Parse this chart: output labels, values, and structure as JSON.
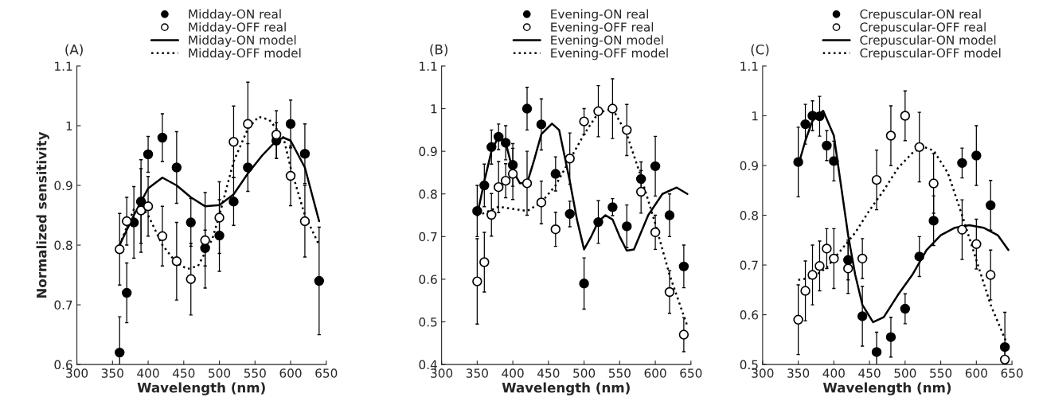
{
  "chart_data": [
    {
      "type": "scatter",
      "title": "(A)",
      "xlabel": "Wavelength (nm)",
      "ylabel": "Normalized sensitivity",
      "xlim": [
        300,
        650
      ],
      "xticks": [
        300,
        350,
        400,
        450,
        500,
        550,
        600,
        650
      ],
      "ylim": [
        0.6,
        1.1
      ],
      "yticks": [
        0.6,
        0.7,
        0.8,
        0.9,
        1,
        1.1
      ],
      "grid": false,
      "legend": "top",
      "series": [
        {
          "name": "Midday-ON real",
          "marker": "circle",
          "color": "#000000",
          "x": [
            360,
            370,
            380,
            390,
            400,
            420,
            440,
            460,
            480,
            500,
            520,
            540,
            580,
            600,
            620,
            640
          ],
          "values": [
            0.62,
            0.72,
            0.838,
            0.873,
            0.952,
            0.98,
            0.93,
            0.838,
            0.795,
            0.816,
            0.873,
            0.93,
            0.975,
            1.003,
            0.953,
            0.74
          ],
          "errors": [
            0.06,
            0.05,
            0.06,
            0.07,
            0.03,
            0.04,
            0.06,
            0.04,
            0.03,
            0.06,
            0.04,
            0.04,
            0.03,
            0.04,
            0.05,
            0.09
          ]
        },
        {
          "name": "Midday-OFF real",
          "marker": "circle",
          "color": "#ffffff",
          "x": [
            360,
            370,
            390,
            400,
            420,
            440,
            460,
            480,
            500,
            520,
            540,
            580,
            600,
            620
          ],
          "values": [
            0.793,
            0.84,
            0.858,
            0.865,
            0.815,
            0.773,
            0.743,
            0.808,
            0.846,
            0.973,
            1.003,
            0.985,
            0.916,
            0.84
          ],
          "errors": [
            0.06,
            0.04,
            0.07,
            0.05,
            0.05,
            0.065,
            0.06,
            0.08,
            0.06,
            0.06,
            0.07,
            0.04,
            0.05,
            0.06
          ]
        },
        {
          "name": "Midday-ON model",
          "type": "line",
          "line_style": "solid",
          "color": "#000000",
          "x": [
            360,
            380,
            400,
            420,
            440,
            460,
            480,
            500,
            520,
            540,
            560,
            580,
            590,
            600,
            620,
            640
          ],
          "values": [
            0.8,
            0.85,
            0.895,
            0.913,
            0.9,
            0.88,
            0.865,
            0.867,
            0.885,
            0.92,
            0.95,
            0.975,
            0.98,
            0.975,
            0.93,
            0.84
          ]
        },
        {
          "name": "Midday-OFF model",
          "type": "line",
          "line_style": "dotted",
          "color": "#000000",
          "x": [
            360,
            380,
            390,
            400,
            420,
            440,
            455,
            470,
            490,
            500,
            520,
            540,
            555,
            570,
            590,
            600,
            620,
            640
          ],
          "values": [
            0.8,
            0.86,
            0.865,
            0.85,
            0.8,
            0.77,
            0.76,
            0.765,
            0.81,
            0.85,
            0.94,
            0.995,
            1.015,
            1.01,
            0.98,
            0.93,
            0.85,
            0.8
          ]
        }
      ]
    },
    {
      "type": "scatter",
      "title": "(B)",
      "xlabel": "Wavelength (nm)",
      "xlim": [
        300,
        650
      ],
      "xticks": [
        300,
        350,
        400,
        450,
        500,
        550,
        600,
        650
      ],
      "ylim": [
        0.4,
        1.1
      ],
      "yticks": [
        0.4,
        0.5,
        0.6,
        0.7,
        0.8,
        0.9,
        1,
        1.1
      ],
      "grid": false,
      "legend": "top",
      "series": [
        {
          "name": "Evening-ON real",
          "marker": "circle",
          "color": "#000000",
          "x": [
            350,
            360,
            370,
            380,
            390,
            400,
            420,
            440,
            460,
            480,
            500,
            520,
            540,
            560,
            580,
            600,
            620,
            640
          ],
          "values": [
            0.76,
            0.82,
            0.91,
            0.934,
            0.92,
            0.868,
            1.0,
            0.963,
            0.847,
            0.753,
            0.59,
            0.734,
            0.769,
            0.724,
            0.835,
            0.865,
            0.75,
            0.63
          ],
          "errors": [
            0.06,
            0.05,
            0.04,
            0.03,
            0.04,
            0.05,
            0.05,
            0.06,
            0.04,
            0.03,
            0.06,
            0.05,
            0.02,
            0.05,
            0.04,
            0.07,
            0.05,
            0.05
          ]
        },
        {
          "name": "Evening-OFF real",
          "marker": "circle",
          "color": "#ffffff",
          "x": [
            350,
            360,
            370,
            380,
            390,
            400,
            420,
            440,
            460,
            480,
            500,
            520,
            540,
            560,
            580,
            600,
            620,
            640
          ],
          "values": [
            0.595,
            0.64,
            0.751,
            0.816,
            0.831,
            0.847,
            0.825,
            0.78,
            0.717,
            0.883,
            0.97,
            0.994,
            1.0,
            0.95,
            0.805,
            0.71,
            0.57,
            0.47
          ],
          "errors": [
            0.1,
            0.07,
            0.05,
            0.06,
            0.04,
            0.06,
            0.075,
            0.05,
            0.04,
            0.06,
            0.03,
            0.06,
            0.07,
            0.06,
            0.05,
            0.04,
            0.05,
            0.04
          ]
        },
        {
          "name": "Evening-ON model",
          "type": "line",
          "line_style": "solid",
          "color": "#000000",
          "x": [
            350,
            360,
            370,
            380,
            390,
            400,
            410,
            420,
            430,
            440,
            455,
            465,
            480,
            490,
            500,
            510,
            520,
            530,
            540,
            550,
            560,
            570,
            590,
            610,
            630,
            645
          ],
          "values": [
            0.75,
            0.83,
            0.9,
            0.935,
            0.92,
            0.855,
            0.825,
            0.825,
            0.88,
            0.94,
            0.965,
            0.95,
            0.83,
            0.74,
            0.67,
            0.7,
            0.735,
            0.75,
            0.74,
            0.7,
            0.667,
            0.67,
            0.75,
            0.8,
            0.815,
            0.8
          ]
        },
        {
          "name": "Evening-OFF model",
          "type": "line",
          "line_style": "dotted",
          "color": "#000000",
          "x": [
            350,
            360,
            380,
            420,
            440,
            460,
            480,
            500,
            520,
            540,
            560,
            580,
            600,
            620,
            645
          ],
          "values": [
            0.75,
            0.755,
            0.77,
            0.76,
            0.78,
            0.82,
            0.88,
            0.94,
            0.99,
            1.0,
            0.94,
            0.84,
            0.73,
            0.61,
            0.49
          ]
        }
      ]
    },
    {
      "type": "scatter",
      "title": "(C)",
      "xlabel": "Wavelength (nm)",
      "xlim": [
        300,
        650
      ],
      "xticks": [
        300,
        350,
        400,
        450,
        500,
        550,
        600,
        650
      ],
      "ylim": [
        0.5,
        1.1
      ],
      "yticks": [
        0.5,
        0.6,
        0.7,
        0.8,
        0.9,
        1,
        1.1
      ],
      "grid": false,
      "legend": "top",
      "series": [
        {
          "name": "Crepuscular-ON real",
          "marker": "circle",
          "color": "#000000",
          "x": [
            350,
            360,
            370,
            380,
            390,
            400,
            420,
            440,
            460,
            480,
            500,
            520,
            540,
            580,
            600,
            620,
            640
          ],
          "values": [
            0.907,
            0.983,
            1.0,
            0.999,
            0.94,
            0.909,
            0.71,
            0.597,
            0.525,
            0.555,
            0.612,
            0.717,
            0.789,
            0.905,
            0.92,
            0.82,
            0.535
          ],
          "errors": [
            0.07,
            0.04,
            0.03,
            0.04,
            0.03,
            0.04,
            0.04,
            0.06,
            0.04,
            0.04,
            0.03,
            0.04,
            0.05,
            0.03,
            0.06,
            0.05,
            0.07
          ]
        },
        {
          "name": "Crepuscular-OFF real",
          "marker": "circle",
          "color": "#ffffff",
          "x": [
            350,
            360,
            370,
            380,
            390,
            400,
            420,
            440,
            460,
            480,
            500,
            520,
            540,
            580,
            600,
            620,
            640
          ],
          "values": [
            0.59,
            0.648,
            0.68,
            0.698,
            0.733,
            0.713,
            0.693,
            0.713,
            0.871,
            0.96,
            1.0,
            0.937,
            0.864,
            0.771,
            0.742,
            0.68,
            0.51
          ],
          "errors": [
            0.07,
            0.06,
            0.06,
            0.05,
            0.04,
            0.06,
            0.05,
            0.04,
            0.06,
            0.06,
            0.05,
            0.07,
            0.06,
            0.06,
            0.05,
            0.05,
            0.03
          ]
        },
        {
          "name": "Crepuscular-ON model",
          "type": "line",
          "line_style": "solid",
          "color": "#000000",
          "x": [
            350,
            360,
            370,
            385,
            400,
            410,
            420,
            430,
            440,
            455,
            470,
            490,
            510,
            530,
            550,
            570,
            590,
            610,
            630,
            645
          ],
          "values": [
            0.9,
            0.95,
            0.99,
            1.01,
            0.96,
            0.86,
            0.76,
            0.68,
            0.62,
            0.585,
            0.595,
            0.64,
            0.68,
            0.73,
            0.76,
            0.775,
            0.78,
            0.775,
            0.76,
            0.73
          ]
        },
        {
          "name": "Crepuscular-OFF model",
          "type": "line",
          "line_style": "dotted",
          "color": "#000000",
          "x": [
            350,
            370,
            390,
            410,
            430,
            450,
            470,
            490,
            510,
            525,
            540,
            560,
            580,
            600,
            620,
            645
          ],
          "values": [
            0.67,
            0.675,
            0.695,
            0.73,
            0.765,
            0.81,
            0.85,
            0.895,
            0.925,
            0.938,
            0.93,
            0.885,
            0.8,
            0.71,
            0.62,
            0.535
          ]
        }
      ]
    }
  ]
}
